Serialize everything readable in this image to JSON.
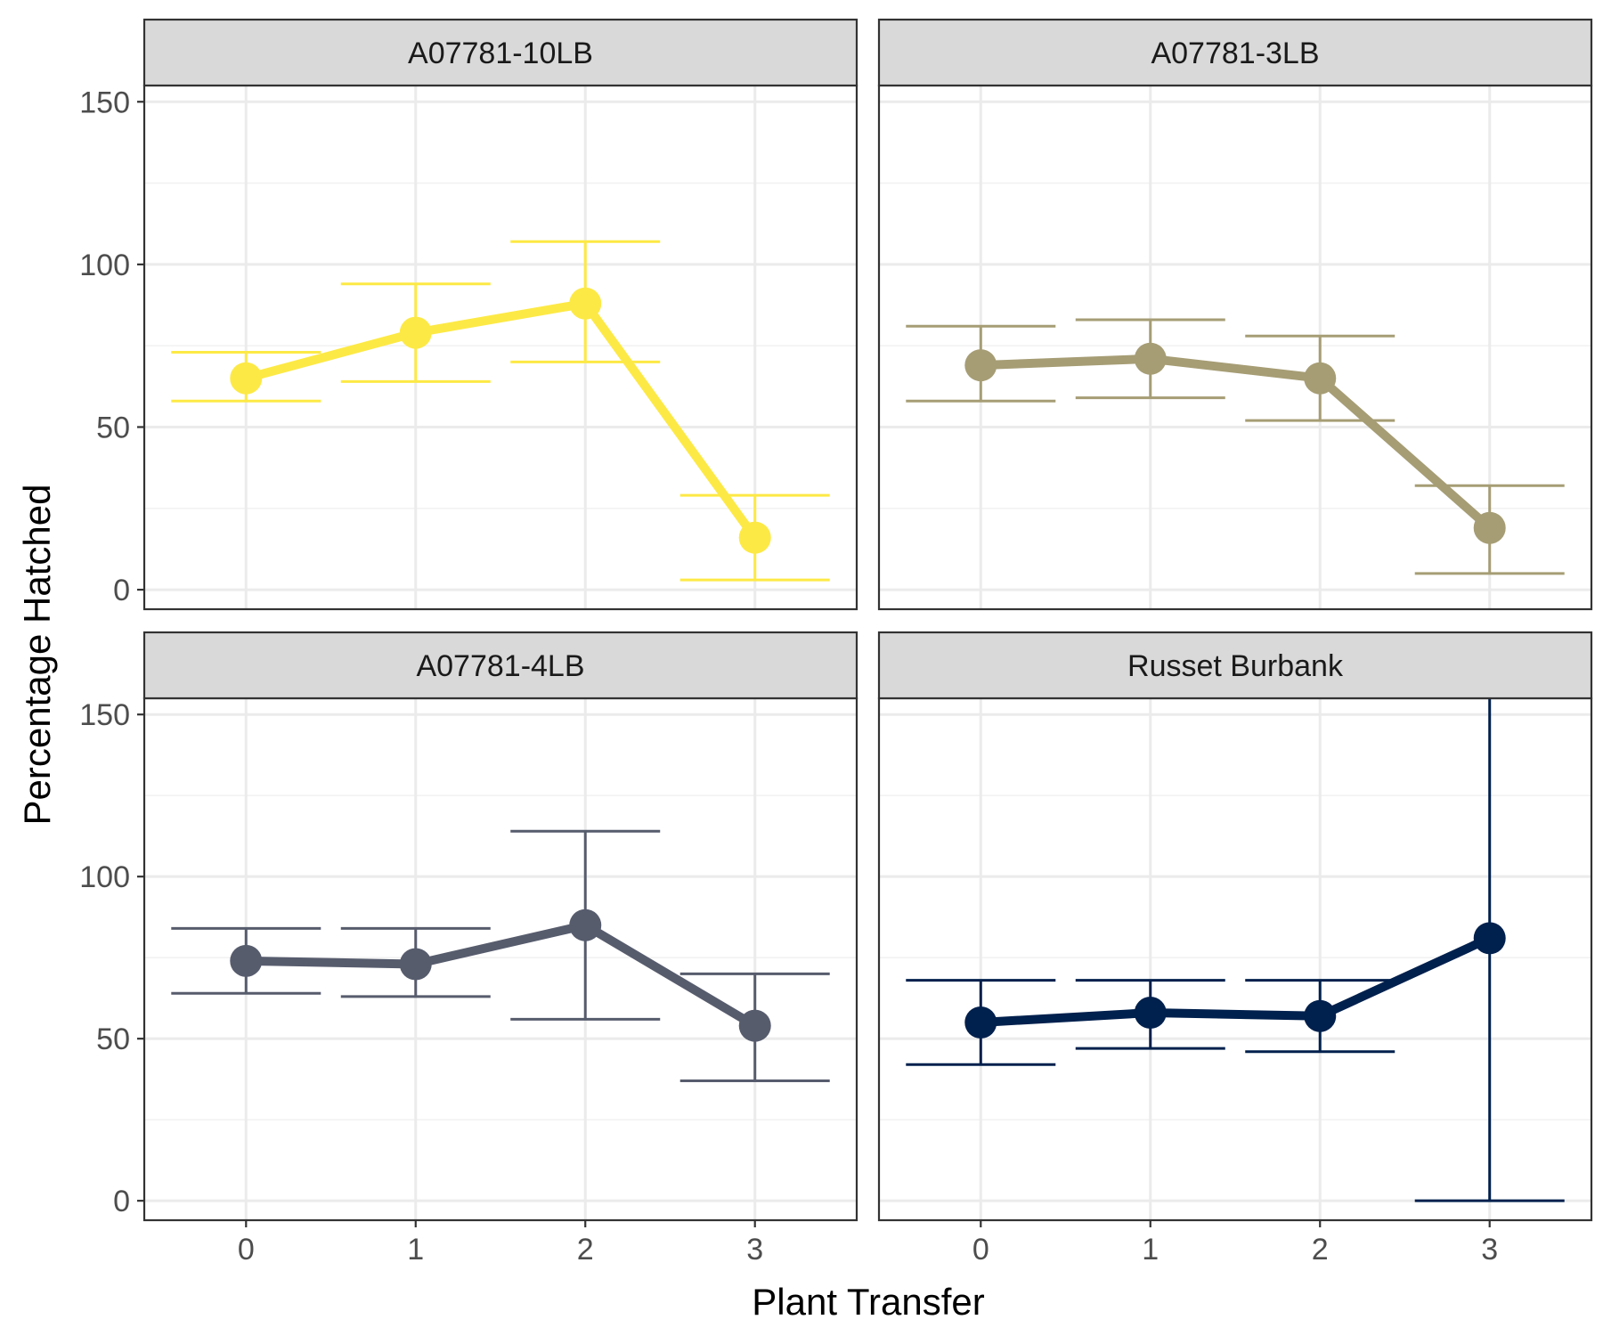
{
  "chart_data": {
    "type": "line",
    "layout": "facet-grid-2x2",
    "xlabel": "Plant Transfer",
    "ylabel": "Percentage Hatched",
    "x_ticks": [
      0,
      1,
      2,
      3
    ],
    "y_ticks": [
      0,
      50,
      100,
      150
    ],
    "ylim": [
      -6,
      155
    ],
    "xlim": [
      -0.6,
      3.6
    ],
    "grid": true,
    "error_bars": true,
    "panels": [
      {
        "name": "A07781-10LB",
        "color": "#FDE945",
        "x": [
          0,
          1,
          2,
          3
        ],
        "y": [
          65,
          79,
          88,
          16
        ],
        "y_low": [
          58,
          64,
          70,
          3
        ],
        "y_high": [
          73,
          94,
          107,
          29
        ]
      },
      {
        "name": "A07781-3LB",
        "color": "#A69D75",
        "x": [
          0,
          1,
          2,
          3
        ],
        "y": [
          69,
          71,
          65,
          19
        ],
        "y_low": [
          58,
          59,
          52,
          5
        ],
        "y_high": [
          81,
          83,
          78,
          32
        ]
      },
      {
        "name": "A07781-4LB",
        "color": "#575C6D",
        "x": [
          0,
          1,
          2,
          3
        ],
        "y": [
          74,
          73,
          85,
          54
        ],
        "y_low": [
          64,
          63,
          56,
          37
        ],
        "y_high": [
          84,
          84,
          114,
          70
        ]
      },
      {
        "name": "Russet Burbank",
        "color": "#00204D",
        "x": [
          0,
          1,
          2,
          3
        ],
        "y": [
          55,
          58,
          57,
          81
        ],
        "y_low": [
          42,
          47,
          46,
          0
        ],
        "y_high": [
          68,
          68,
          68,
          160
        ]
      }
    ]
  }
}
